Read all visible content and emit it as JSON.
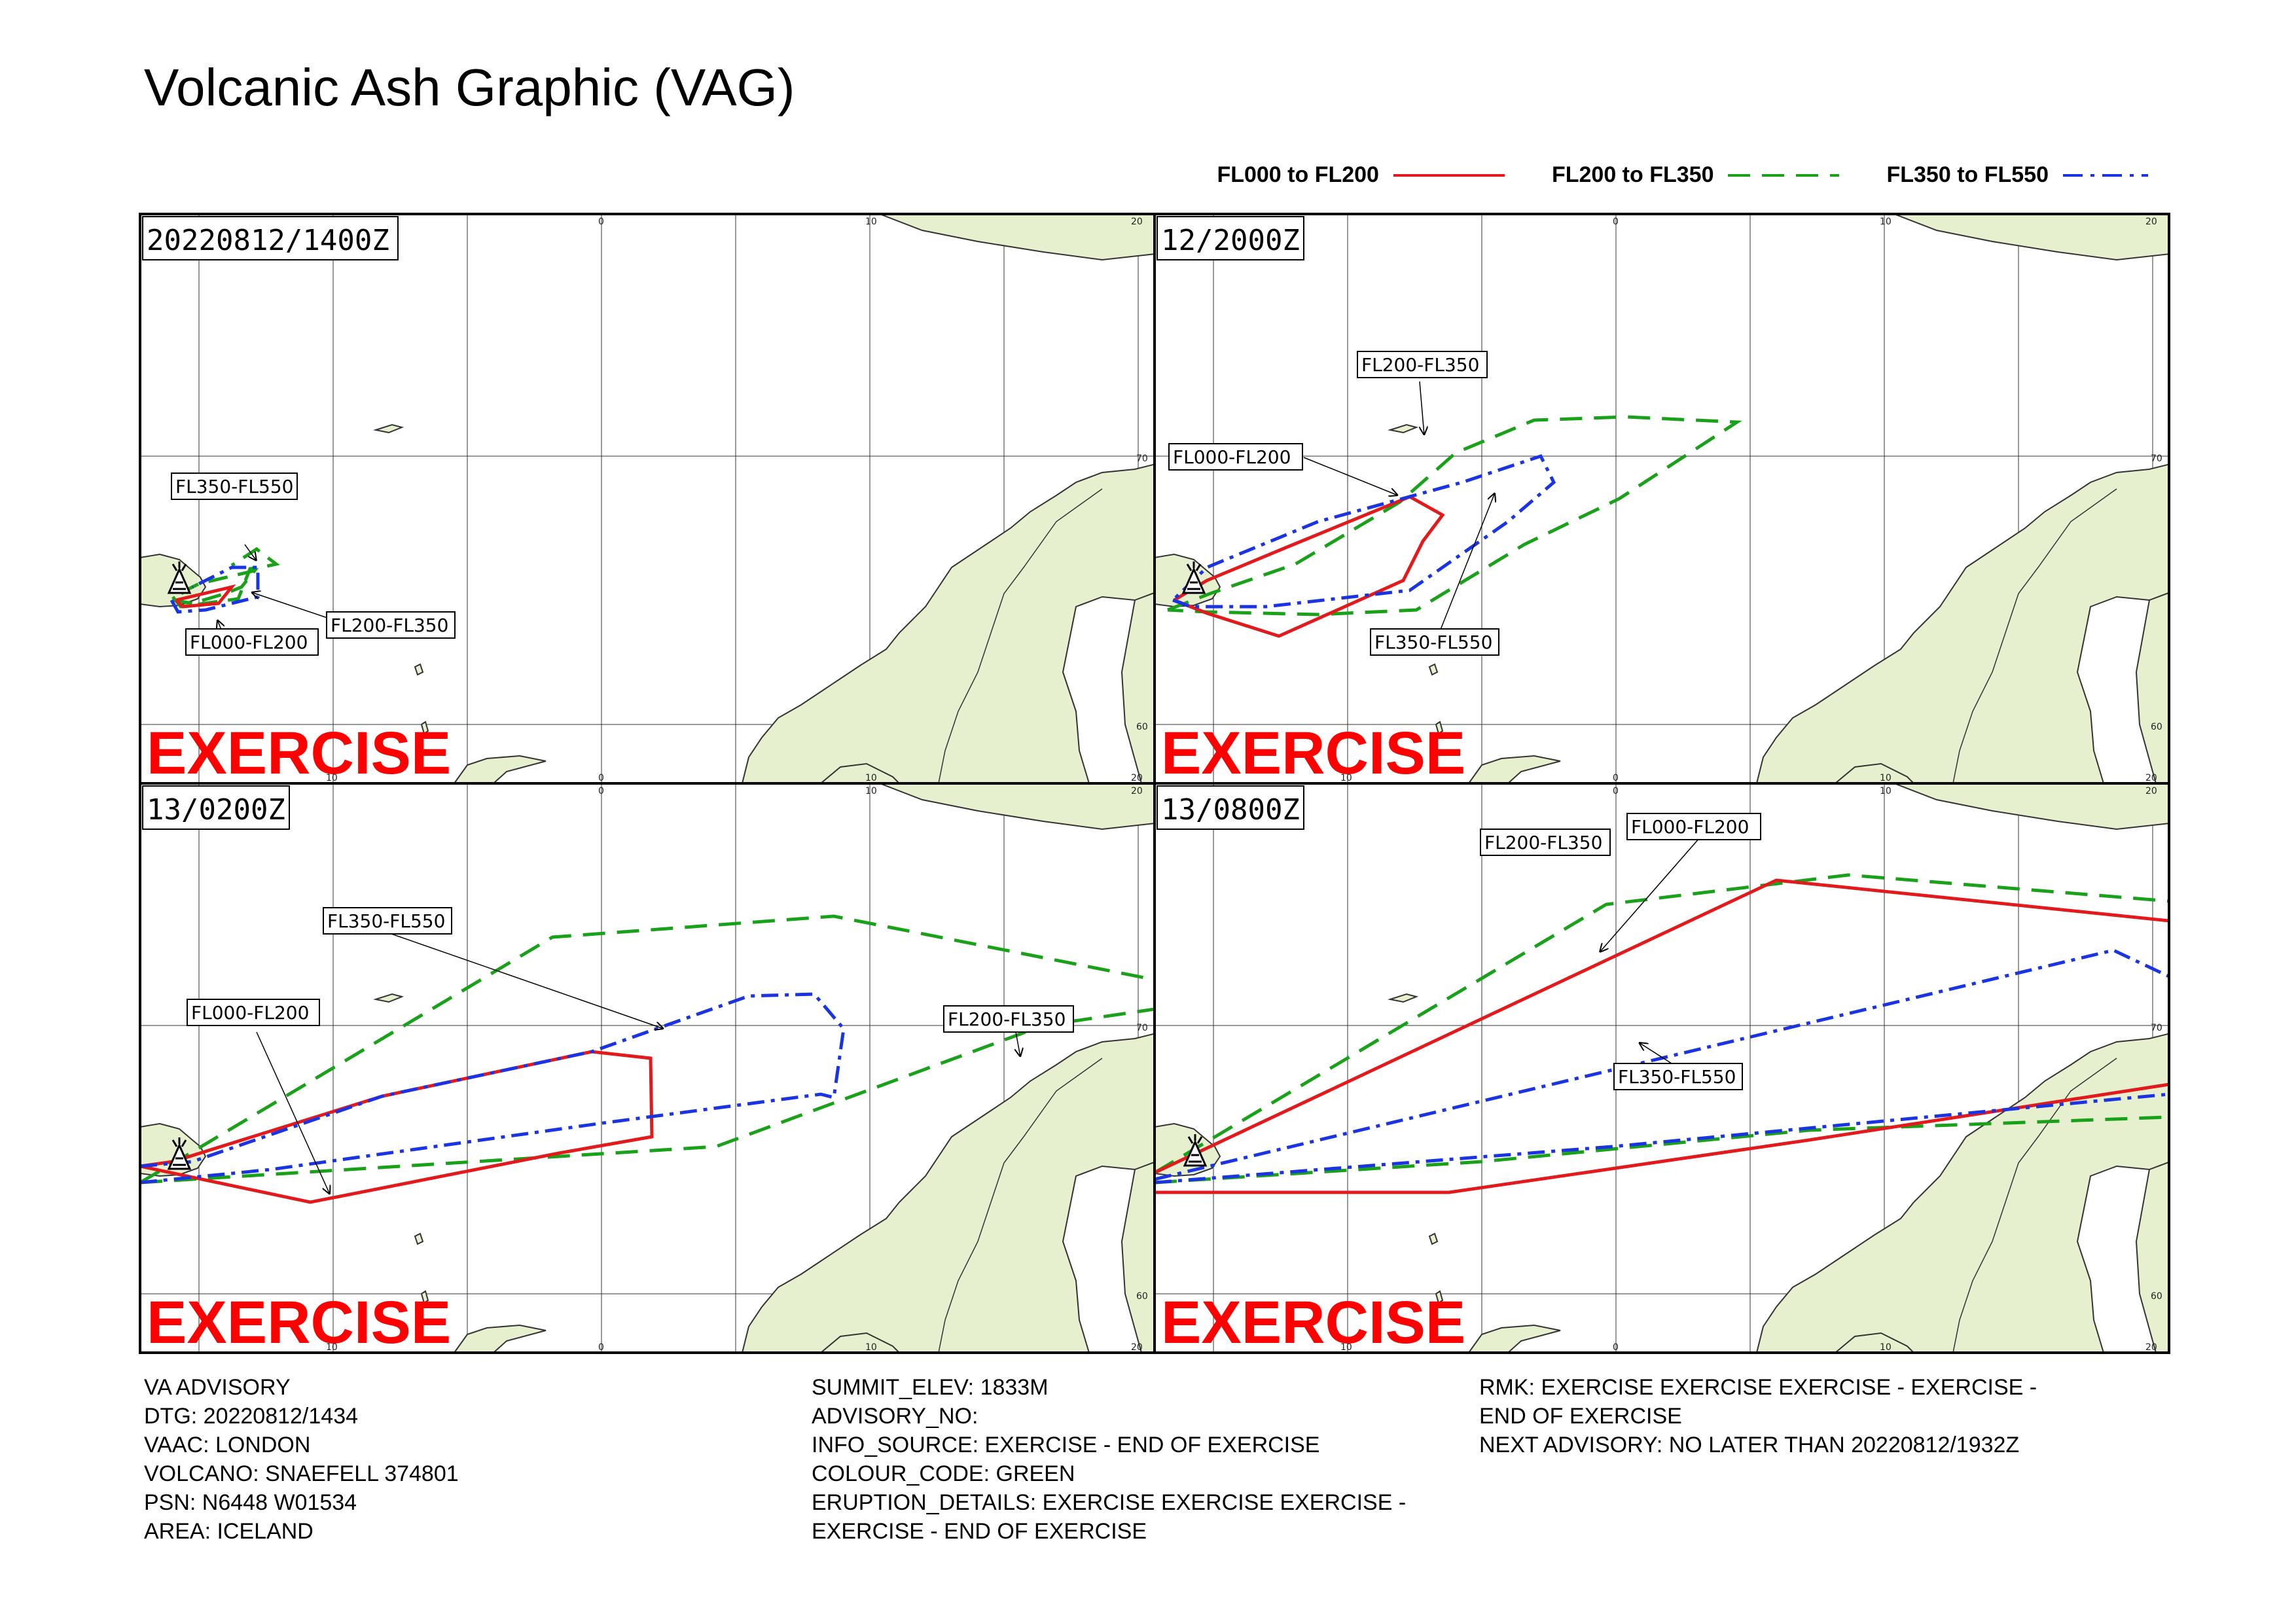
{
  "title": "Volcanic Ash Graphic (VAG)",
  "legend": [
    {
      "label": "FL000 to FL200",
      "color": "#e31a1c",
      "dash": "solid"
    },
    {
      "label": "FL200 to FL350",
      "color": "#1aa11a",
      "dash": "dashed"
    },
    {
      "label": "FL350 to FL550",
      "color": "#1a33e3",
      "dash": "dash-dot"
    }
  ],
  "colors": {
    "land": "#e6f0cf",
    "land_border": "#2a2a2a",
    "grid": "#333333",
    "exercise": "#ff0000"
  },
  "watermark": "EXERCISE",
  "volcano_icon": "volcano-icon",
  "grid_labels": {
    "top": [
      "0",
      "10",
      "20"
    ],
    "top_left_panel": [
      "10",
      "0",
      "20"
    ],
    "lat": [
      "70",
      "60"
    ],
    "bottom": [
      "10",
      "0",
      "10",
      "20"
    ]
  },
  "panels": [
    {
      "time": "20220812/1400Z",
      "labels": [
        {
          "text": "FL350-FL550",
          "layer": "FL350"
        },
        {
          "text": "FL000-FL200",
          "layer": "FL000"
        },
        {
          "text": "FL200-FL350",
          "layer": "FL200"
        }
      ]
    },
    {
      "time": "12/2000Z",
      "labels": [
        {
          "text": "FL200-FL350",
          "layer": "FL200"
        },
        {
          "text": "FL000-FL200",
          "layer": "FL000"
        },
        {
          "text": "FL350-FL550",
          "layer": "FL350"
        }
      ]
    },
    {
      "time": "13/0200Z",
      "labels": [
        {
          "text": "FL350-FL550",
          "layer": "FL350"
        },
        {
          "text": "FL000-FL200",
          "layer": "FL000"
        },
        {
          "text": "FL200-FL350",
          "layer": "FL200"
        }
      ]
    },
    {
      "time": "13/0800Z",
      "labels": [
        {
          "text": "FL200-FL350",
          "layer": "FL200"
        },
        {
          "text": "FL000-FL200",
          "layer": "FL000"
        },
        {
          "text": "FL350-FL550",
          "layer": "FL350"
        }
      ]
    }
  ],
  "advisory": {
    "col1": [
      "VA ADVISORY",
      "DTG: 20220812/1434",
      "VAAC: LONDON",
      "VOLCANO: SNAEFELL 374801",
      "PSN: N6448 W01534",
      "AREA: ICELAND"
    ],
    "col2": [
      "SUMMIT_ELEV: 1833M",
      "ADVISORY_NO:",
      "INFO_SOURCE: EXERCISE - END OF EXERCISE",
      "COLOUR_CODE: GREEN",
      "ERUPTION_DETAILS: EXERCISE EXERCISE EXERCISE -",
      "EXERCISE - END OF EXERCISE"
    ],
    "col3": [
      "RMK: EXERCISE EXERCISE EXERCISE - EXERCISE -",
      "END OF EXERCISE",
      "NEXT ADVISORY: NO LATER THAN 20220812/1932Z"
    ]
  }
}
